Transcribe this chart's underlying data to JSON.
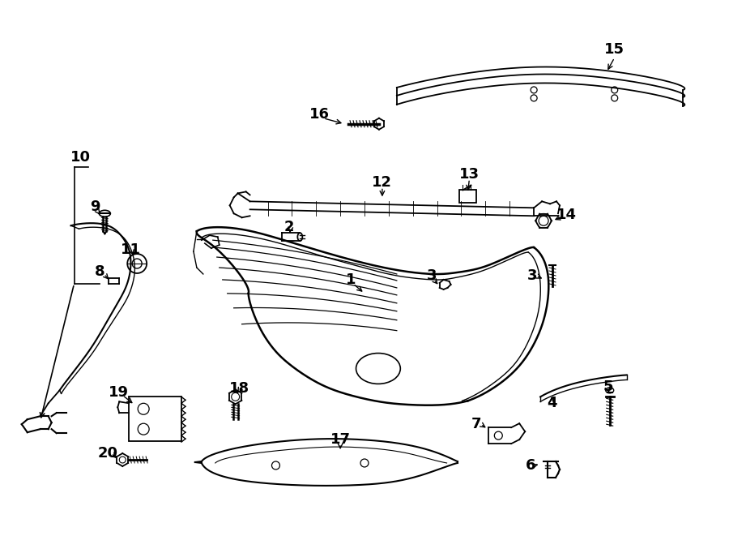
{
  "background_color": "#ffffff",
  "line_color": "#000000",
  "label_fontsize": 13
}
